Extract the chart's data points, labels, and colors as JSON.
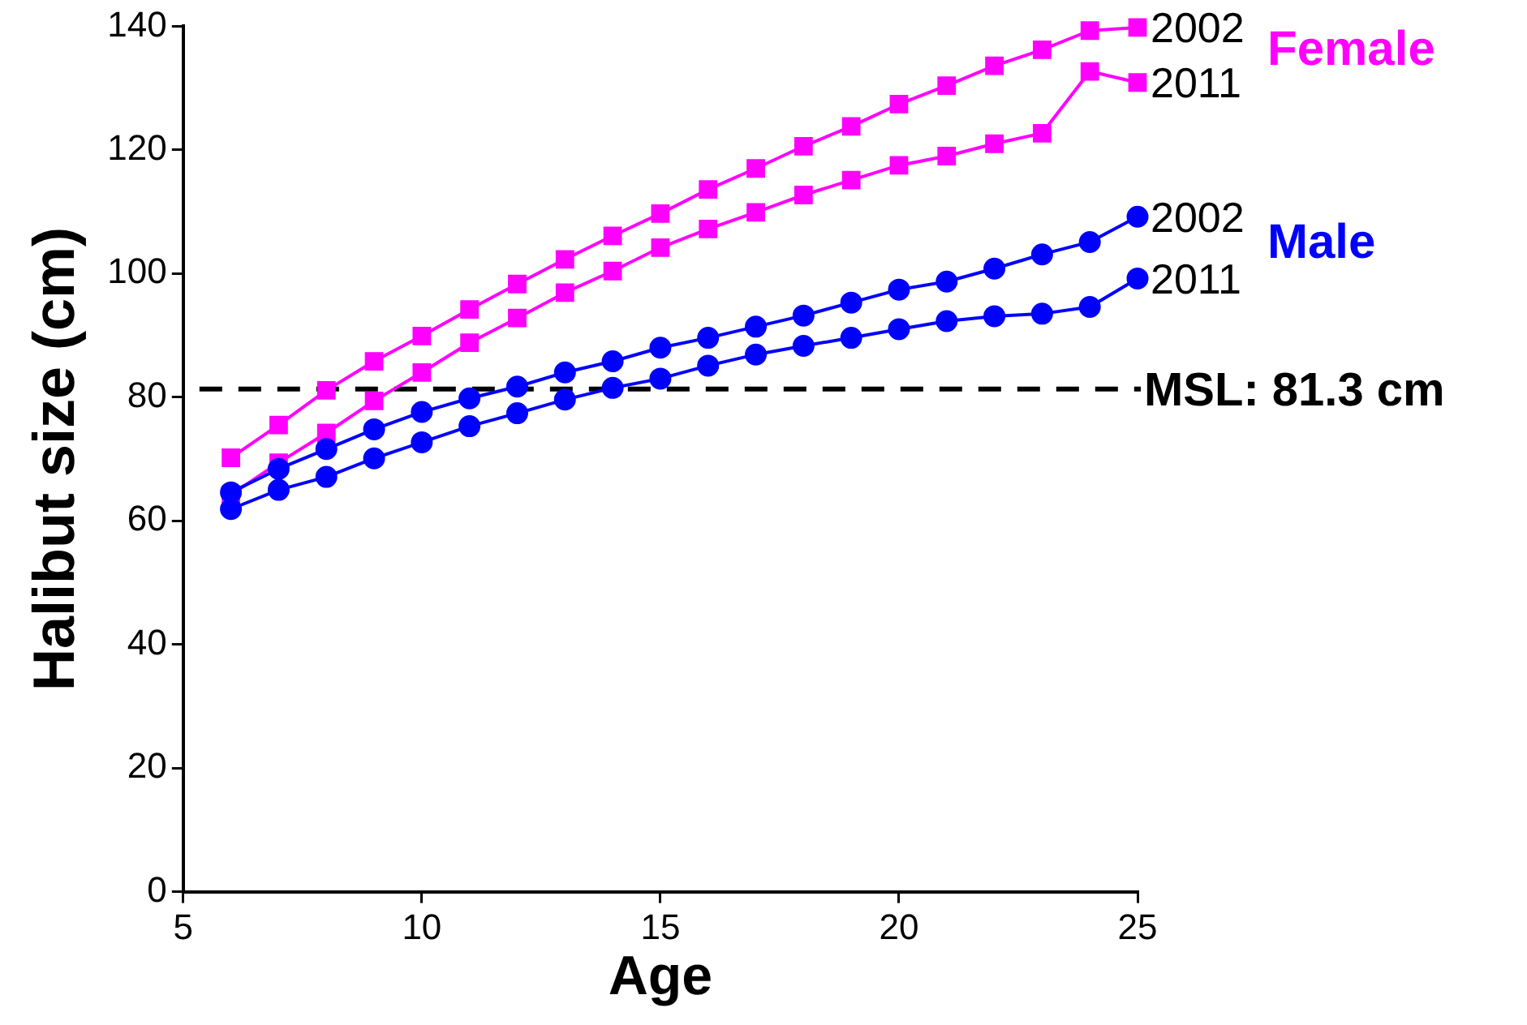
{
  "chart_data": {
    "type": "line",
    "xlabel": "Age",
    "ylabel": "Halibut size (cm)",
    "x": [
      6,
      7,
      8,
      9,
      10,
      11,
      12,
      13,
      14,
      15,
      16,
      17,
      18,
      19,
      20,
      21,
      22,
      23,
      24,
      25
    ],
    "xlim": [
      5,
      25
    ],
    "xticks": [
      5,
      10,
      15,
      20,
      25
    ],
    "ylim": [
      0,
      140
    ],
    "yticks": [
      0,
      20,
      40,
      60,
      80,
      100,
      120,
      140
    ],
    "grid": false,
    "legend": false,
    "line_style": "solid",
    "series": [
      {
        "name": "2002",
        "color": "#ff00ff",
        "marker": "square",
        "values": [
          70.2,
          75.5,
          81.1,
          85.8,
          89.9,
          94.2,
          98.3,
          102.3,
          106.1,
          109.7,
          113.6,
          117,
          120.6,
          123.8,
          127.4,
          130.4,
          133.6,
          136.2,
          139.3,
          139.8
        ]
      },
      {
        "name": "2011",
        "color": "#ff00ff",
        "marker": "square",
        "values": [
          64.2,
          69.4,
          74.2,
          79.4,
          84,
          88.8,
          92.8,
          96.9,
          100.4,
          104.2,
          107.2,
          109.9,
          112.7,
          115.1,
          117.5,
          119,
          121,
          122.7,
          132.7,
          130.9
        ]
      },
      {
        "name": "2002",
        "color": "#0000ff",
        "marker": "circle",
        "values": [
          64.6,
          68.4,
          71.6,
          74.8,
          77.6,
          79.8,
          81.7,
          84,
          85.8,
          88,
          89.6,
          91.4,
          93.2,
          95.3,
          97.4,
          98.7,
          100.8,
          103.1,
          105.1,
          109.2
        ]
      },
      {
        "name": "2011",
        "color": "#0000ff",
        "marker": "circle",
        "values": [
          61.9,
          65,
          67.1,
          70.1,
          72.7,
          75.3,
          77.4,
          79.6,
          81.5,
          83,
          85.1,
          86.9,
          88.3,
          89.6,
          91,
          92.3,
          93.1,
          93.5,
          94.6,
          99.2
        ]
      }
    ],
    "ref_lines": [
      {
        "axis": "y",
        "value": 81.3,
        "label": "MSL: 81.3 cm",
        "color": "#000000",
        "line_style": "dashed"
      }
    ],
    "annotations": [
      "Female",
      "Male"
    ]
  }
}
